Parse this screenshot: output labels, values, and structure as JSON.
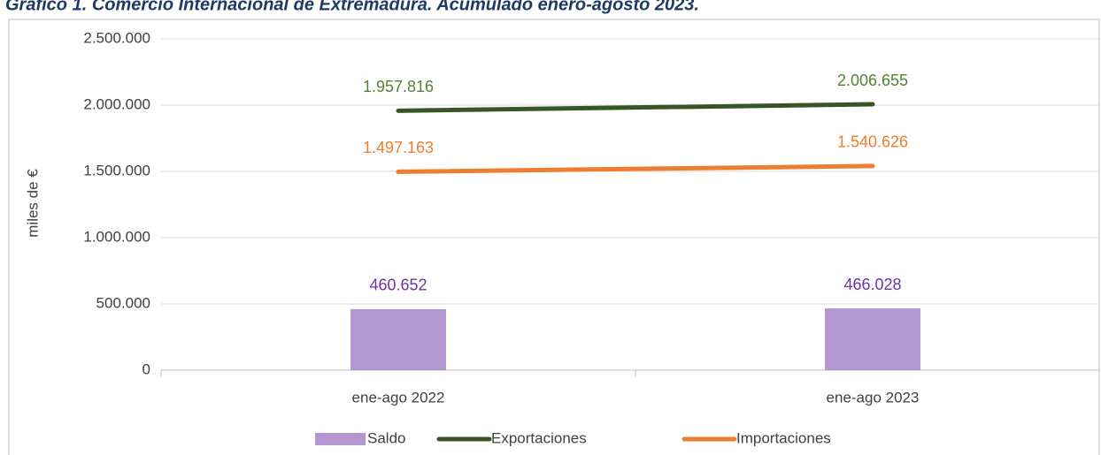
{
  "chart_data": {
    "type": "combo",
    "title": "Gráfico 1. Comercio Internacional de Extremadura. Acumulado enero-agosto 2023.",
    "ylabel": "miles de €",
    "categories": [
      "ene-ago 2022",
      "ene-ago 2023"
    ],
    "series": [
      {
        "name": "Saldo",
        "type": "bar",
        "color": "#b497d0",
        "label_color": "#7030a0",
        "values": [
          460652,
          466028
        ],
        "value_labels": [
          "460.652",
          "466.028"
        ]
      },
      {
        "name": "Exportaciones",
        "type": "line",
        "color": "#375623",
        "label_color": "#548235",
        "values": [
          1957816,
          2006655
        ],
        "value_labels": [
          "1.957.816",
          "2.006.655"
        ]
      },
      {
        "name": "Importaciones",
        "type": "line",
        "color": "#ed7d31",
        "label_color": "#ed7d31",
        "values": [
          1497163,
          1540626
        ],
        "value_labels": [
          "1.497.163",
          "1.540.626"
        ]
      }
    ],
    "ylim": [
      0,
      2500000
    ],
    "yticks": [
      0,
      {
        "value": 500000,
        "label": "500.000"
      },
      {
        "value": 1000000,
        "label": "1.000.000"
      },
      {
        "value": 1500000,
        "label": "1.500.000"
      },
      {
        "value": 2000000,
        "label": "2.000.000"
      },
      {
        "value": 2500000,
        "label": "2.500.000"
      }
    ],
    "grid": true,
    "legend": "bottom"
  }
}
